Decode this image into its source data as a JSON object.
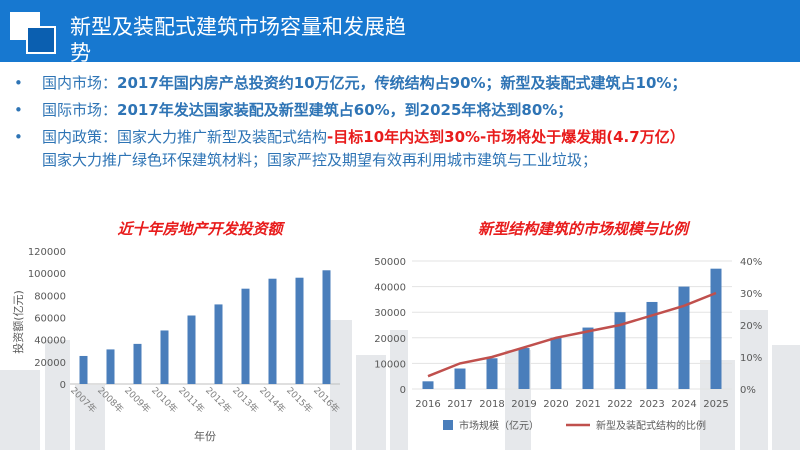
{
  "header": {
    "title": "新型及装配式建筑市场容量和发展趋势"
  },
  "bullets": [
    {
      "label": "国内市场：",
      "text": "2017年国内房产总投资约10万亿元，传统结构占90%；新型及装配式建筑占10%；"
    },
    {
      "label": "国际市场：",
      "text": "2017年发达国家装配及新型建筑占60%，到2025年将达到80%；"
    },
    {
      "label": "国内政策：",
      "text": "国家大力推广新型及装配式结构",
      "highlight": "-目标10年内达到30%-市场将处于爆发期(4.7万亿）",
      "continuation": "国家大力推广绿色环保建筑材料；国家严控及期望有效再利用城市建筑与工业垃圾；"
    }
  ],
  "colors": {
    "header": "#1778d0",
    "bar": "#4a7ebb",
    "line": "#c0504d",
    "accent_text": "#2e74b5",
    "chart_title": "#e81c1c"
  },
  "chart_data": [
    {
      "type": "bar",
      "title": "近十年房地产开发投资额",
      "xlabel": "年份",
      "ylabel": "投资额(亿元)",
      "categories": [
        "2007年",
        "2008年",
        "2009年",
        "2010年",
        "2011年",
        "2012年",
        "2013年",
        "2014年",
        "2015年",
        "2016年"
      ],
      "values": [
        25300,
        31200,
        36200,
        48300,
        61800,
        71800,
        86000,
        95000,
        95900,
        102600
      ],
      "ylim": [
        0,
        120000
      ],
      "yticks": [
        "0",
        "20000",
        "40000",
        "60000",
        "80000",
        "100000",
        "120000"
      ],
      "grid": false
    },
    {
      "type": "bar",
      "title": "新型结构建筑的市场规模与比例",
      "categories": [
        "2016",
        "2017",
        "2018",
        "2019",
        "2020",
        "2021",
        "2022",
        "2023",
        "2024",
        "2025"
      ],
      "series": [
        {
          "name": "市场规模（亿元）",
          "type": "bar",
          "axis": "left",
          "values": [
            3000,
            8000,
            12000,
            16000,
            20000,
            24000,
            30000,
            34000,
            40000,
            47000
          ]
        },
        {
          "name": "新型及装配式结构的比例",
          "type": "line",
          "axis": "right",
          "values": [
            0.04,
            0.08,
            0.1,
            0.13,
            0.16,
            0.18,
            0.2,
            0.23,
            0.26,
            0.3
          ]
        }
      ],
      "ylim_left": [
        0,
        50000
      ],
      "ylim_right": [
        0,
        0.4
      ],
      "yticks_left": [
        "0",
        "10000",
        "20000",
        "30000",
        "40000",
        "50000"
      ],
      "yticks_right": [
        "0%",
        "10%",
        "20%",
        "30%",
        "40%"
      ],
      "legend": "bottom",
      "grid": true
    }
  ]
}
